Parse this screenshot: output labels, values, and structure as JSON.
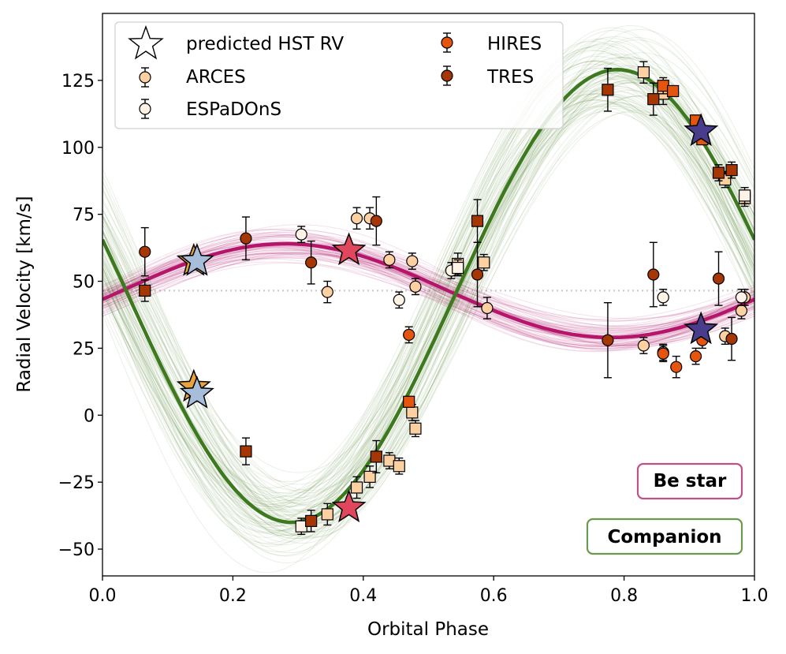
{
  "chart_data": {
    "type": "scatter",
    "xlabel": "Orbital Phase",
    "ylabel": "Radial Velocity [km/s]",
    "xlim": [
      0.0,
      1.0
    ],
    "ylim": [
      -60,
      150
    ],
    "xticks": [
      "0.0",
      "0.2",
      "0.4",
      "0.6",
      "0.8",
      "1.0"
    ],
    "yticks": [
      "−50",
      "−25",
      "0",
      "25",
      "50",
      "75",
      "100",
      "125"
    ],
    "systemic_velocity": 46.5,
    "be_star_model": {
      "gamma": 46.5,
      "K": 17.5,
      "phase_of_max": 0.28
    },
    "companion_model": {
      "gamma": 44.5,
      "K": 84.5,
      "phase_of_max": 0.79
    },
    "legend": {
      "predicted": "predicted HST RV",
      "arces": "ARCES",
      "espadons": "ESPaDOnS",
      "hires": "HIRES",
      "tres": "TRES"
    },
    "annotations": {
      "be_star": "Be star",
      "companion": "Companion"
    },
    "colors": {
      "be_star_curve": "#b5166b",
      "companion_curve": "#3d7a1f",
      "arces": "#fdd0a2",
      "espadons": "#fff2e6",
      "hires": "#e6550d",
      "tres": "#a63603",
      "be_box": "#c0508a",
      "companion_box": "#6a9a50"
    },
    "series": [
      {
        "name": "ARCES",
        "role": "be_star",
        "marker": "circle",
        "x": [
          0.39,
          0.41,
          0.44,
          0.475,
          0.48,
          0.345,
          0.59,
          0.83,
          0.86,
          0.955,
          0.98,
          0.985
        ],
        "y": [
          73.5,
          73.5,
          58,
          57.5,
          48,
          46,
          40,
          26,
          23.5,
          29.5,
          39,
          44
        ],
        "err": [
          4,
          4,
          3,
          3,
          3,
          4,
          4,
          3,
          3,
          3,
          3,
          3
        ]
      },
      {
        "name": "ARCES",
        "role": "companion",
        "marker": "square",
        "x": [
          0.345,
          0.39,
          0.41,
          0.44,
          0.455,
          0.475,
          0.48,
          0.545,
          0.585,
          0.83,
          0.86,
          0.955,
          0.985
        ],
        "y": [
          -37,
          -27,
          -23,
          -17,
          -19,
          1,
          -5,
          56.5,
          57,
          128,
          120,
          88,
          81
        ],
        "err": [
          4,
          4,
          4,
          3,
          3,
          3,
          3,
          4,
          3,
          4,
          4,
          3,
          3
        ]
      },
      {
        "name": "ESPaDOnS",
        "role": "be_star",
        "marker": "circle",
        "x": [
          0.305,
          0.455,
          0.535,
          0.86,
          0.98
        ],
        "y": [
          67.5,
          43,
          54,
          44,
          44
        ],
        "err": [
          3,
          3,
          3,
          3,
          3
        ]
      },
      {
        "name": "ESPaDOnS",
        "role": "companion",
        "marker": "square",
        "x": [
          0.305,
          0.545,
          0.985
        ],
        "y": [
          -41.5,
          55,
          82
        ],
        "err": [
          3,
          3,
          3
        ]
      },
      {
        "name": "HIRES",
        "role": "be_star",
        "marker": "circle",
        "x": [
          0.47,
          0.86,
          0.88,
          0.91,
          0.92
        ],
        "y": [
          30,
          23,
          18,
          22,
          28
        ],
        "err": [
          3,
          3,
          4,
          3,
          3
        ]
      },
      {
        "name": "HIRES",
        "role": "companion",
        "marker": "square",
        "x": [
          0.47,
          0.86,
          0.875,
          0.91,
          0.92
        ],
        "y": [
          5,
          123,
          121,
          110,
          103
        ],
        "err": [
          2,
          3,
          2,
          2,
          2
        ]
      },
      {
        "name": "TRES",
        "role": "be_star",
        "marker": "circle",
        "x": [
          0.065,
          0.22,
          0.32,
          0.42,
          0.575,
          0.775,
          0.845,
          0.945,
          0.965
        ],
        "y": [
          61,
          66,
          57,
          72.5,
          52.5,
          28,
          52.5,
          51,
          28.5
        ],
        "err": [
          9,
          8,
          8,
          9,
          12,
          14,
          12,
          10,
          8
        ]
      },
      {
        "name": "TRES",
        "role": "companion",
        "marker": "square",
        "x": [
          0.065,
          0.22,
          0.32,
          0.42,
          0.575,
          0.775,
          0.845,
          0.945,
          0.965
        ],
        "y": [
          46.5,
          -13.5,
          -39.5,
          -15.5,
          72.5,
          121.5,
          118,
          90.5,
          91.5
        ],
        "err": [
          4,
          5,
          4,
          6,
          8,
          8,
          6,
          3,
          3
        ]
      }
    ],
    "predicted_hst": [
      {
        "x": 0.14,
        "y": 57.5,
        "color": "#e8a33a"
      },
      {
        "x": 0.14,
        "y": 10.5,
        "color": "#e8a33a"
      },
      {
        "x": 0.145,
        "y": 57.5,
        "color": "#a7bedb"
      },
      {
        "x": 0.145,
        "y": 8,
        "color": "#a7bedb"
      },
      {
        "x": 0.378,
        "y": 61.5,
        "color": "#e0475c"
      },
      {
        "x": 0.378,
        "y": -34.5,
        "color": "#e0475c"
      },
      {
        "x": 0.918,
        "y": 106,
        "color": "#4a3c8c"
      },
      {
        "x": 0.918,
        "y": 32,
        "color": "#4a3c8c"
      }
    ]
  }
}
